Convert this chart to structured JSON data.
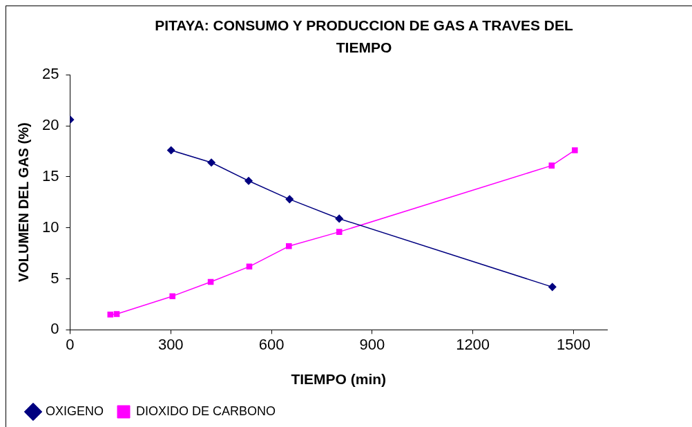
{
  "chart_data": {
    "type": "line",
    "title": "PITAYA: CONSUMO Y PRODUCCION DE GAS A TRAVES DEL TIEMPO",
    "xlabel": "TIEMPO (min)",
    "ylabel": "VOLUMEN DEL GAS (%)",
    "series": [
      {
        "name": "OXIGENO",
        "color": "#000080",
        "marker": "diamond",
        "x": [
          301,
          421,
          532,
          654,
          802,
          1437
        ],
        "values": [
          17.6,
          16.4,
          14.6,
          12.8,
          10.9,
          4.2
        ]
      },
      {
        "color": "#000080",
        "marker": "diamond",
        "x": [
          0
        ],
        "values": [
          20.6
        ]
      },
      {
        "name": "DIOXIDO DE CARBONO",
        "color": "#ff00ff",
        "marker": "square",
        "x": [
          120,
          139,
          305,
          419,
          534,
          652,
          802,
          1435,
          1504
        ],
        "values": [
          1.5,
          1.55,
          3.3,
          4.7,
          6.2,
          8.2,
          9.6,
          16.1,
          17.6
        ]
      }
    ],
    "xlim": [
      0,
      1600
    ],
    "xticks": [
      0,
      300,
      600,
      900,
      1200,
      1500
    ],
    "ylim": [
      0,
      25
    ],
    "yticks": [
      0,
      5,
      10,
      15,
      20,
      25
    ],
    "legend": "bottom left",
    "line_style": "solid"
  }
}
